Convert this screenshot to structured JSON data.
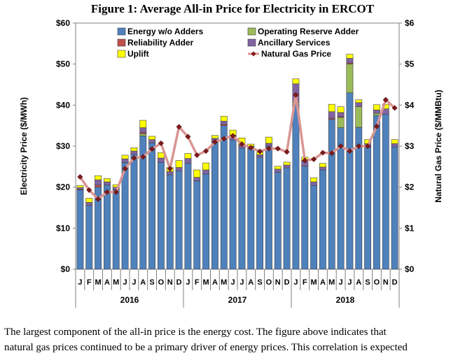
{
  "figure_title": "Figure 1:  Average All-in Price for Electricity in ERCOT",
  "caption_lines": [
    "The largest component of the all-in price is the energy cost.  The figure above indicates that",
    "natural gas prices continued to be a primary driver of energy prices.  This correlation is expected"
  ],
  "chart_data": {
    "type": "bar",
    "stacked": true,
    "title": "Figure 1:  Average All-in Price for Electricity in ERCOT",
    "ylabel": "Electricity Price ($/MWh)",
    "y2label": "Natural Gas Price ($/MMBtu)",
    "ylim": [
      0,
      60
    ],
    "y2lim": [
      0,
      6
    ],
    "yticks": [
      "$0",
      "$10",
      "$20",
      "$30",
      "$40",
      "$50",
      "$60"
    ],
    "y2ticks": [
      "$0",
      "$1",
      "$2",
      "$3",
      "$4",
      "$5",
      "$6"
    ],
    "grid": false,
    "legend_position": "top",
    "categories": [
      "J",
      "F",
      "M",
      "A",
      "M",
      "J",
      "J",
      "A",
      "S",
      "O",
      "N",
      "D",
      "J",
      "F",
      "M",
      "A",
      "M",
      "J",
      "J",
      "A",
      "S",
      "O",
      "N",
      "D",
      "J",
      "F",
      "M",
      "A",
      "M",
      "J",
      "J",
      "A",
      "S",
      "O",
      "N",
      "D"
    ],
    "years": [
      "2016",
      "2017",
      "2018"
    ],
    "series": [
      {
        "name": "Energy w/o Adders",
        "color": "#4f81bd",
        "values": [
          19.3,
          15.5,
          20.0,
          20.5,
          19.4,
          26.0,
          28.0,
          32.5,
          30.8,
          26.0,
          23.0,
          24.0,
          25.8,
          21.5,
          23.2,
          31.0,
          35.0,
          31.5,
          29.5,
          29.3,
          27.3,
          30.0,
          23.6,
          24.7,
          40.2,
          25.1,
          20.4,
          24.2,
          36.5,
          34.5,
          43.0,
          34.6,
          29.8,
          37.5,
          37.8,
          29.8
        ]
      },
      {
        "name": "Operating Reserve Adder",
        "color": "#9bbb59",
        "values": [
          0.1,
          0,
          0,
          0,
          0,
          0,
          0,
          0.5,
          0,
          0,
          0,
          0,
          0,
          0,
          0,
          0,
          0,
          0,
          0,
          0,
          0,
          0,
          0,
          0,
          0.5,
          0,
          0,
          0,
          0,
          2.5,
          7.0,
          5.0,
          0,
          0.5,
          0,
          0
        ]
      },
      {
        "name": "Reliability Adder",
        "color": "#c0504d",
        "values": [
          0,
          0,
          0.5,
          0,
          0,
          0,
          0,
          0.3,
          0,
          0,
          0,
          0,
          0,
          0,
          0,
          0,
          0.3,
          0,
          0,
          0,
          0,
          0,
          0,
          0,
          0,
          0,
          0,
          0,
          0.3,
          0.2,
          0.3,
          0,
          0,
          0,
          0,
          0
        ]
      },
      {
        "name": "Ancillary Services",
        "color": "#8064a2",
        "values": [
          0.5,
          0.8,
          1.3,
          0.8,
          0.6,
          0.9,
          0.8,
          1.2,
          0.8,
          1.1,
          0.8,
          0.8,
          1.2,
          0.9,
          1.0,
          0.9,
          0.8,
          1.2,
          0.8,
          0.7,
          0.6,
          0.7,
          0.8,
          0.7,
          4.5,
          1.3,
          0.9,
          0.7,
          1.6,
          1.0,
          1.1,
          1.0,
          0.8,
          0.8,
          1.3,
          0.8
        ]
      },
      {
        "name": "Uplift",
        "color": "#ffff00",
        "values": [
          0.5,
          1.0,
          1.0,
          0.8,
          0.6,
          0.9,
          0.8,
          1.8,
          0.8,
          1.3,
          1.0,
          1.7,
          1.2,
          1.8,
          1.7,
          0.7,
          1.2,
          1.2,
          1.7,
          0.5,
          0.6,
          1.5,
          0.7,
          0.7,
          1.2,
          0.9,
          1.0,
          0.9,
          1.8,
          1.4,
          1.0,
          0.7,
          1.0,
          1.3,
          1.1,
          1.0
        ]
      },
      {
        "name": "Natural Gas Price",
        "color": "#c0504d",
        "line_color": "#d99694",
        "marker_color": "#7f1c1c",
        "axis": "right",
        "values": [
          2.25,
          1.93,
          1.71,
          1.88,
          1.88,
          2.45,
          2.71,
          2.74,
          2.93,
          3.07,
          2.45,
          3.47,
          3.23,
          2.78,
          2.88,
          3.1,
          3.18,
          3.25,
          3.05,
          2.96,
          2.87,
          2.94,
          2.94,
          2.86,
          4.25,
          2.65,
          2.68,
          2.84,
          2.83,
          3.0,
          2.88,
          3.0,
          3.0,
          3.48,
          4.13,
          3.93
        ]
      }
    ]
  }
}
